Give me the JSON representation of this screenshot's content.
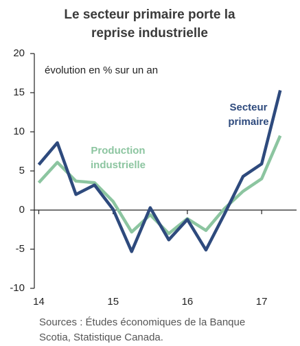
{
  "chart_data": {
    "type": "line",
    "title": [
      "Le secteur primaire porte la",
      "reprise industrielle"
    ],
    "subtitle": "évolution en % sur un an",
    "source": [
      "Sources : Études économiques de la Banque",
      "Scotia, Statistique Canada."
    ],
    "x": [
      14,
      14.25,
      14.5,
      14.75,
      15,
      15.25,
      15.5,
      15.75,
      16,
      16.25,
      16.5,
      16.75,
      17,
      17.25
    ],
    "series": [
      {
        "name": [
          "Secteur",
          "primaire"
        ],
        "color": "#2e4a7d",
        "values": [
          5.8,
          8.6,
          2.0,
          3.2,
          0.1,
          -5.3,
          0.3,
          -3.8,
          -1.2,
          -5.1,
          -0.5,
          4.3,
          5.9,
          15.3
        ]
      },
      {
        "name": [
          "Production",
          "industrielle"
        ],
        "color": "#8cc5a0",
        "values": [
          3.5,
          6.1,
          3.7,
          3.5,
          1.1,
          -2.8,
          -0.6,
          -3.0,
          -1.1,
          -2.6,
          0.2,
          2.4,
          4.0,
          9.5
        ]
      }
    ],
    "xlim": [
      13.94,
      17.47
    ],
    "xticks": [
      14,
      15,
      16,
      17
    ],
    "ylim": [
      -10,
      20
    ],
    "yticks": [
      -10,
      -5,
      0,
      5,
      10,
      15,
      20
    ]
  }
}
